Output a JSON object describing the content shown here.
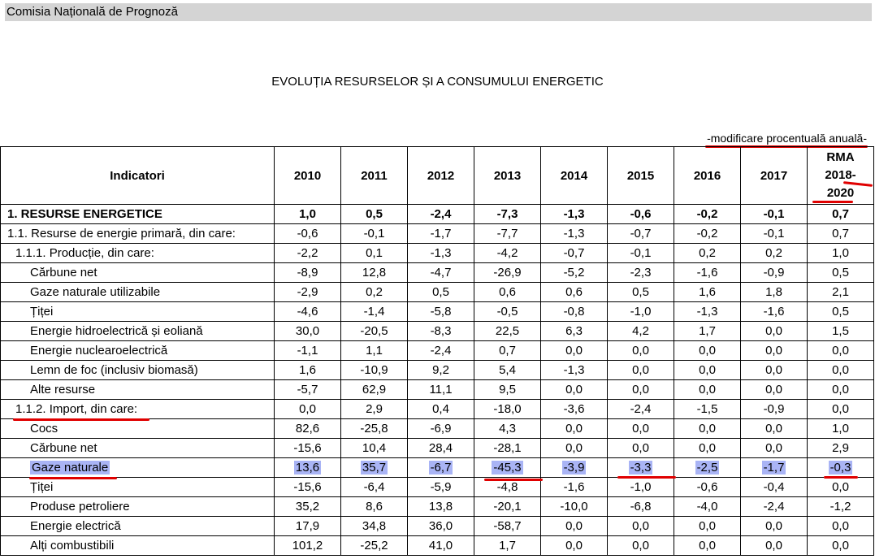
{
  "header": {
    "org": "Comisia Națională de Prognoză"
  },
  "title": "EVOLUȚIA RESURSELOR ȘI A CONSUMULUI ENERGETIC",
  "note": "-modificare procentuală anuală-",
  "table": {
    "col_indicator": "Indicatori",
    "years": [
      "2010",
      "2011",
      "2012",
      "2013",
      "2014",
      "2015",
      "2016",
      "2017"
    ],
    "rma": [
      "RMA",
      "2018-",
      "2020"
    ],
    "rows": [
      {
        "label": "1. RESURSE ENERGETICE",
        "values": [
          "1,0",
          "0,5",
          "-2,4",
          "-7,3",
          "-1,3",
          "-0,6",
          "-0,2",
          "-0,1",
          "0,7"
        ]
      },
      {
        "label": "1.1. Resurse de energie primară, din care:",
        "values": [
          "-0,6",
          "-0,1",
          "-1,7",
          "-7,7",
          "-1,3",
          "-0,7",
          "-0,2",
          "-0,1",
          "0,7"
        ]
      },
      {
        "label": "1.1.1. Producție, din care:",
        "values": [
          "-2,2",
          "0,1",
          "-1,3",
          "-4,2",
          "-0,7",
          "-0,1",
          "0,2",
          "0,2",
          "1,0"
        ]
      },
      {
        "label": "Cărbune net",
        "values": [
          "-8,9",
          "12,8",
          "-4,7",
          "-26,9",
          "-5,2",
          "-2,3",
          "-1,6",
          "-0,9",
          "0,5"
        ]
      },
      {
        "label": "Gaze naturale utilizabile",
        "values": [
          "-2,9",
          "0,2",
          "0,5",
          "0,6",
          "0,6",
          "0,5",
          "1,6",
          "1,8",
          "2,1"
        ]
      },
      {
        "label": "Țiței",
        "values": [
          "-4,6",
          "-1,4",
          "-5,8",
          "-0,5",
          "-0,8",
          "-1,0",
          "-1,3",
          "-1,6",
          "0,5"
        ]
      },
      {
        "label": "Energie hidroelectrică și eoliană",
        "values": [
          "30,0",
          "-20,5",
          "-8,3",
          "22,5",
          "6,3",
          "4,2",
          "1,7",
          "0,0",
          "1,5"
        ]
      },
      {
        "label": "Energie nuclearoelectrică",
        "values": [
          "-1,1",
          "1,1",
          "-2,4",
          "0,7",
          "0,0",
          "0,0",
          "0,0",
          "0,0",
          "0,0"
        ]
      },
      {
        "label": "Lemn de foc (inclusiv biomasă)",
        "values": [
          "1,6",
          "-10,9",
          "9,2",
          "5,4",
          "-1,3",
          "0,0",
          "0,0",
          "0,0",
          "0,0"
        ]
      },
      {
        "label": "Alte resurse",
        "values": [
          "-5,7",
          "62,9",
          "11,1",
          "9,5",
          "0,0",
          "0,0",
          "0,0",
          "0,0",
          "0,0"
        ]
      },
      {
        "label": "1.1.2. Import, din care:",
        "values": [
          "0,0",
          "2,9",
          "0,4",
          "-18,0",
          "-3,6",
          "-2,4",
          "-1,5",
          "-0,9",
          "0,0"
        ]
      },
      {
        "label": "Cocs",
        "values": [
          "82,6",
          "-25,8",
          "-6,9",
          "4,3",
          "0,0",
          "0,0",
          "0,0",
          "0,0",
          "1,0"
        ]
      },
      {
        "label": "Cărbune net",
        "values": [
          "-15,6",
          "10,4",
          "28,4",
          "-28,1",
          "0,0",
          "0,0",
          "0,0",
          "0,0",
          "2,9"
        ]
      },
      {
        "label": "Gaze naturale",
        "values": [
          "13,6",
          "35,7",
          "-6,7",
          "-45,3",
          "-3,9",
          "-3,3",
          "-2,5",
          "-1,7",
          "-0,3"
        ]
      },
      {
        "label": "Țiței",
        "values": [
          "-15,6",
          "-6,4",
          "-5,9",
          "-4,8",
          "-1,6",
          "-1,0",
          "-0,6",
          "-0,4",
          "0,0"
        ]
      },
      {
        "label": "Produse petroliere",
        "values": [
          "35,2",
          "8,6",
          "13,8",
          "-20,1",
          "-10,0",
          "-6,8",
          "-4,0",
          "-2,4",
          "-1,2"
        ]
      },
      {
        "label": "Energie electrică",
        "values": [
          "17,9",
          "34,8",
          "36,0",
          "-58,7",
          "0,0",
          "0,0",
          "0,0",
          "0,0",
          "0,0"
        ]
      },
      {
        "label": "Alți combustibili",
        "values": [
          "101,2",
          "-25,2",
          "41,0",
          "1,7",
          "0,0",
          "0,0",
          "0,0",
          "0,0",
          "0,0"
        ]
      }
    ]
  },
  "colors": {
    "highlight": "#a9b4f5",
    "annotation": "#e00000",
    "header_bar": "#d4d4d4"
  }
}
